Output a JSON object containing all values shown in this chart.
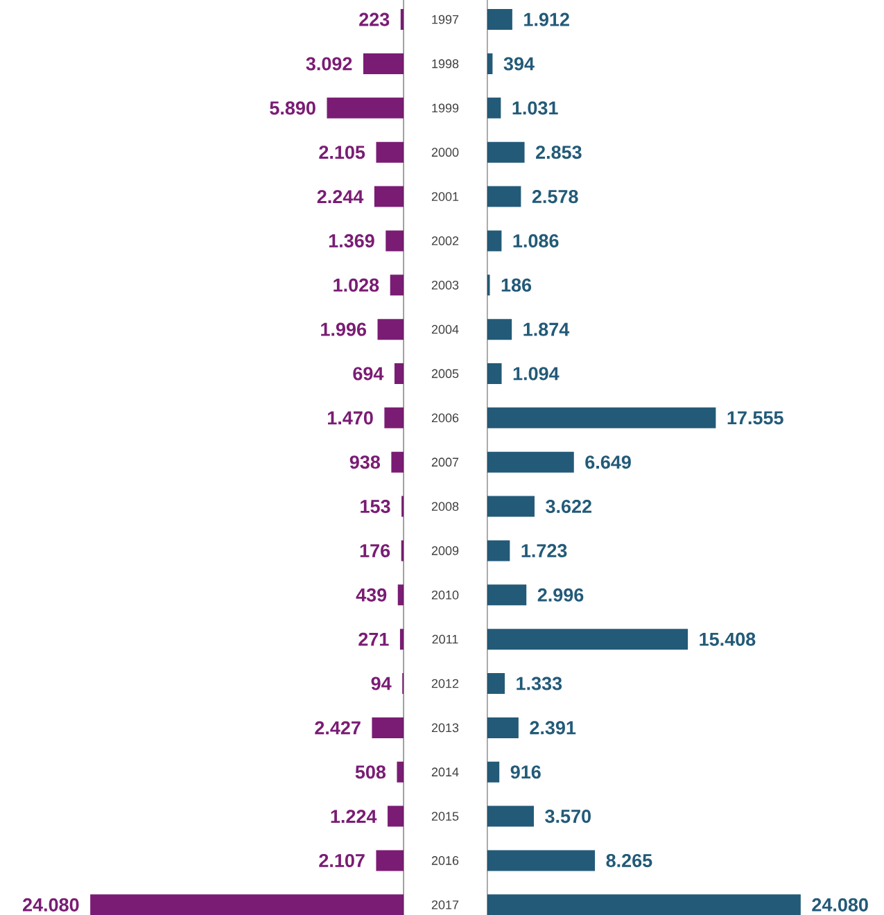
{
  "chart_data": [
    {
      "type": "bar",
      "orientation": "horizontal",
      "tick_labels": "y",
      "color": "#7a1c74",
      "categories": [
        "1997",
        "1998",
        "1999",
        "2000",
        "2001",
        "2002",
        "2003",
        "2004",
        "2005",
        "2006",
        "2007",
        "2008",
        "2009",
        "2010",
        "2011",
        "2012",
        "2013",
        "2014",
        "2015",
        "2016",
        "2017"
      ],
      "values": [
        223,
        3092,
        5890,
        2105,
        2244,
        1369,
        1028,
        1996,
        694,
        1470,
        938,
        153,
        176,
        439,
        271,
        94,
        2427,
        508,
        1224,
        2107,
        24080
      ],
      "value_labels": [
        "223",
        "3.092",
        "5.890",
        "2.105",
        "2.244",
        "1.369",
        "1.028",
        "1.996",
        "694",
        "1.470",
        "938",
        "153",
        "176",
        "439",
        "271",
        "94",
        "2.427",
        "508",
        "1.224",
        "2.107",
        "24.080"
      ]
    },
    {
      "type": "bar",
      "orientation": "horizontal",
      "tick_labels": false,
      "color": "#235a78",
      "categories": [
        "1997",
        "1998",
        "1999",
        "2000",
        "2001",
        "2002",
        "2003",
        "2004",
        "2005",
        "2006",
        "2007",
        "2008",
        "2009",
        "2010",
        "2011",
        "2012",
        "2013",
        "2014",
        "2015",
        "2016",
        "2017"
      ],
      "values": [
        1912,
        394,
        1031,
        2853,
        2578,
        1086,
        186,
        1874,
        1094,
        17555,
        6649,
        3622,
        1723,
        2996,
        15408,
        1333,
        2391,
        916,
        3570,
        8265,
        24080
      ],
      "value_labels": [
        "1.912",
        "394",
        "1.031",
        "2.853",
        "2.578",
        "1.086",
        "186",
        "1.874",
        "1.094",
        "17.555",
        "6.649",
        "3.622",
        "1.723",
        "2.996",
        "15.408",
        "1.333",
        "2.391",
        "916",
        "3.570",
        "8.265",
        "24.080"
      ]
    }
  ]
}
